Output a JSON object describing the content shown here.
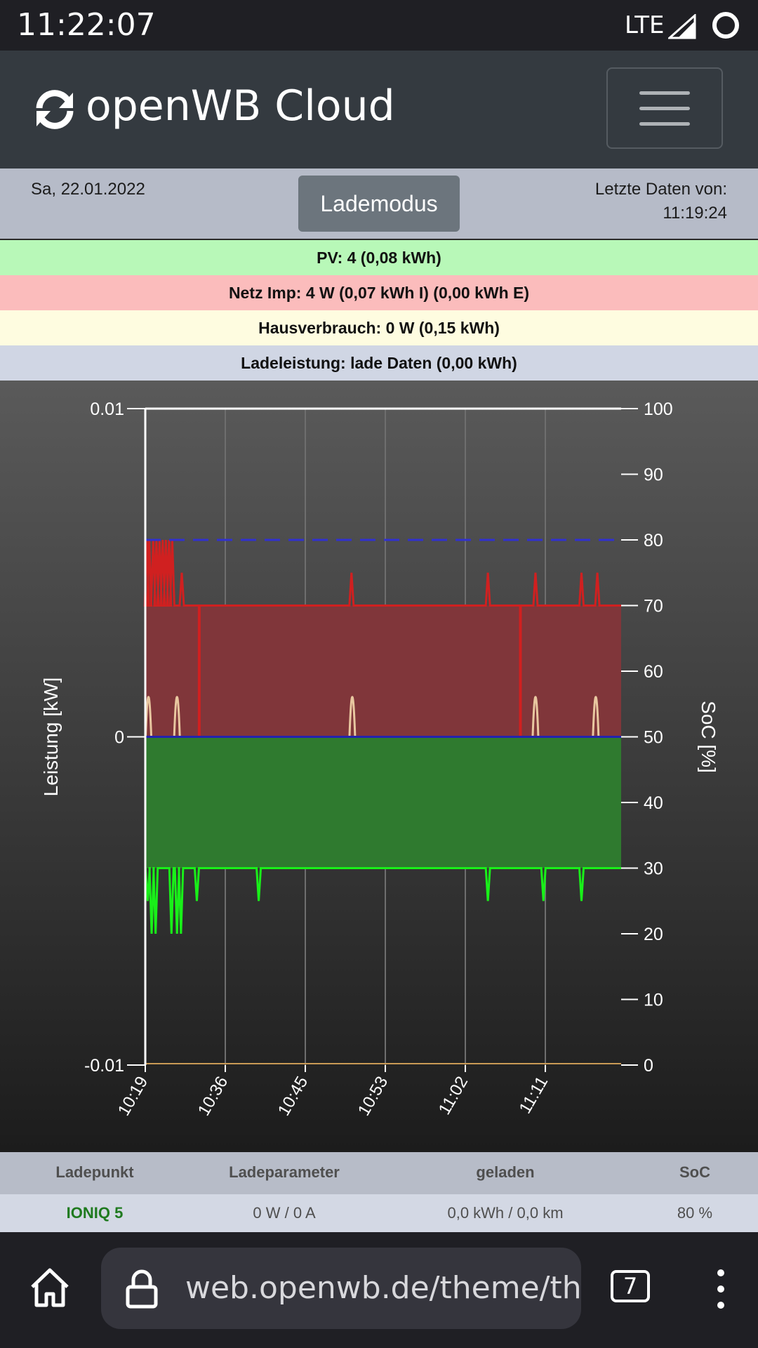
{
  "status_bar": {
    "time": "11:22:07",
    "network": "LTE"
  },
  "header": {
    "title": "openWB Cloud",
    "logo_icon": "sync-icon",
    "menu_icon": "hamburger-menu-icon"
  },
  "info_bar": {
    "date": "Sa, 22.01.2022",
    "mode_button": "Lademodus",
    "last_data_label": "Letzte Daten von:",
    "last_data_time": "11:19:24"
  },
  "summary": {
    "pv": "PV: 4 (0,08 kWh)",
    "grid": "Netz Imp: 4 W (0,07 kWh I) (0,00 kWh E)",
    "house": "Hausverbrauch: 0 W (0,15 kWh)",
    "charge": "Ladeleistung: lade Daten (0,00 kWh)"
  },
  "colors": {
    "pv_row": "#b8f8b8",
    "grid_row": "#fbbcbc",
    "house_row": "#fefce0",
    "charge_row": "#d0d6e4",
    "grid_fill": "#80363a",
    "grid_line": "#d02020",
    "pv_fill": "#2f7a2f",
    "pv_line": "#19f019",
    "house_line": "#e8c7a0",
    "soc_line": "#3030d0",
    "name_green": "#1f7a1f"
  },
  "chart_data": {
    "type": "area",
    "x_ticks": [
      "10:19",
      "10:36",
      "10:45",
      "10:53",
      "11:02",
      "11:11"
    ],
    "ylabel_left": "Leistung [kW]",
    "ylabel_right": "SoC [%]",
    "y_left_ticks": [
      "0.01",
      "0",
      "-0.01"
    ],
    "y_left_range": [
      -0.01,
      0.01
    ],
    "y_right_ticks": [
      "100",
      "90",
      "80",
      "70",
      "60",
      "50",
      "40",
      "30",
      "20",
      "10",
      "0"
    ],
    "y_right_range": [
      0,
      100
    ],
    "grid": true,
    "series": [
      {
        "key": "grid",
        "axis": "left",
        "base": 0.004,
        "spike": 0.006,
        "values_note_x_minutes": [
          0,
          60
        ]
      },
      {
        "key": "pv",
        "axis": "left",
        "base": -0.004,
        "dip": -0.005
      },
      {
        "key": "house",
        "axis": "left",
        "base": 0,
        "peak": 0.002
      },
      {
        "key": "soc",
        "axis": "right",
        "value": 80
      }
    ]
  },
  "table": {
    "headers": [
      "Ladepunkt",
      "Ladeparameter",
      "geladen",
      "SoC"
    ],
    "row": {
      "name": "IONIQ 5",
      "params": "0 W / 0 A",
      "loaded": "0,0 kWh / 0,0 km",
      "soc": "80 %"
    }
  },
  "browser": {
    "url": "web.openwb.de/theme/theme",
    "tab_count": "7",
    "home_icon": "home-icon",
    "lock_icon": "lock-icon",
    "more_icon": "more-vert-icon"
  }
}
